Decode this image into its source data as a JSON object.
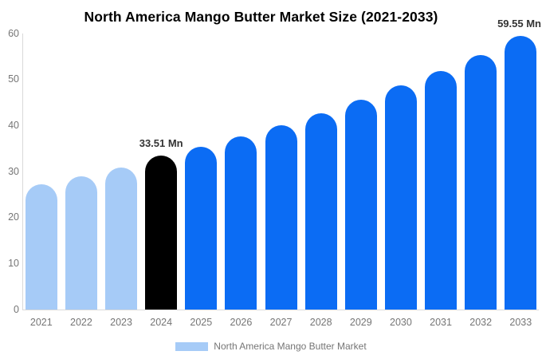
{
  "chart_data": {
    "type": "bar",
    "title": "North America Mango Butter Market Size (2021-2033)",
    "categories": [
      "2021",
      "2022",
      "2023",
      "2024",
      "2025",
      "2026",
      "2027",
      "2028",
      "2029",
      "2030",
      "2031",
      "2032",
      "2033"
    ],
    "values": [
      27.2,
      29.0,
      30.9,
      33.51,
      35.4,
      37.6,
      40.1,
      42.7,
      45.6,
      48.7,
      51.9,
      55.4,
      59.55
    ],
    "unit": "Mn",
    "xlabel": "",
    "ylabel": "",
    "ylim": [
      0,
      60
    ],
    "y_ticks": [
      0,
      10,
      20,
      30,
      40,
      50,
      60
    ],
    "grid": false,
    "legend_position": "bottom",
    "bar_colors": [
      "#a6cbf7",
      "#a6cbf7",
      "#a6cbf7",
      "#000000",
      "#0b6cf4",
      "#0b6cf4",
      "#0b6cf4",
      "#0b6cf4",
      "#0b6cf4",
      "#0b6cf4",
      "#0b6cf4",
      "#0b6cf4",
      "#0b6cf4"
    ],
    "annotations": [
      {
        "category": "2024",
        "text": "33.51 Mn"
      },
      {
        "category": "2033",
        "text": "59.55 Mn"
      }
    ]
  },
  "legend": {
    "label": "North America Mango Butter Market",
    "swatch_color": "#a6cbf7"
  },
  "colors": {
    "historical_bar": "#a6cbf7",
    "base_year_bar": "#000000",
    "forecast_bar": "#0b6cf4",
    "axis_text": "#757575",
    "axis_line": "#d9d9d9",
    "value_label_text": "#333333",
    "title_text": "#000000",
    "background": "#ffffff"
  }
}
